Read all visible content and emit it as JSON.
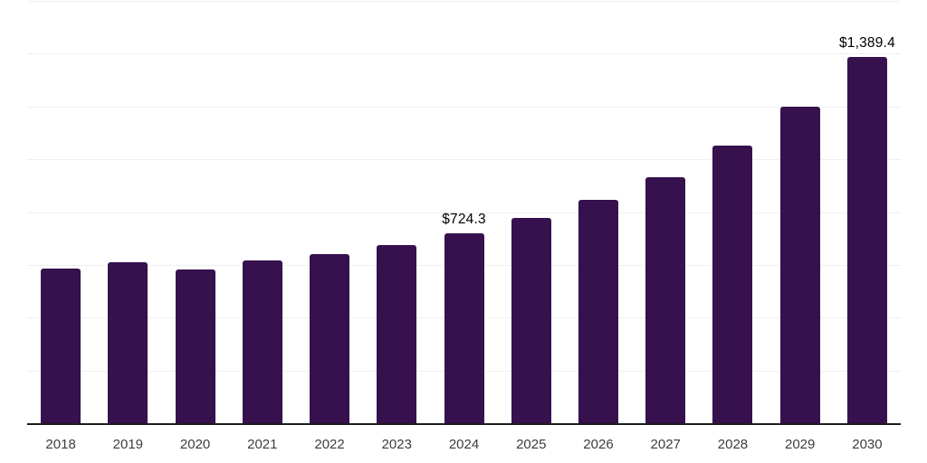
{
  "chart_data": {
    "type": "bar",
    "title": "",
    "xlabel": "",
    "ylabel": "",
    "categories": [
      "2018",
      "2019",
      "2020",
      "2021",
      "2022",
      "2023",
      "2024",
      "2025",
      "2026",
      "2027",
      "2028",
      "2029",
      "2030"
    ],
    "values": [
      590,
      614,
      587,
      619,
      643,
      680,
      724.3,
      780,
      851,
      937,
      1057,
      1202,
      1389.4
    ],
    "data_labels": {
      "2024": "$724.3",
      "2030": "$1,389.4"
    },
    "ylim": [
      0,
      1600
    ],
    "gridline_interval": 200,
    "grid": "horizontal, light gray, no y-axis tick labels",
    "legend": "none",
    "colors": {
      "bar": "#36114d",
      "axis_line": "#1c1c1c",
      "gridline": "#efefef",
      "x_label": "#3d3d3d",
      "data_label": "#000000",
      "background": "#ffffff"
    }
  }
}
